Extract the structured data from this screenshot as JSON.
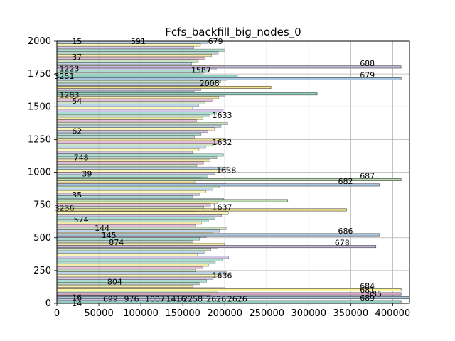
{
  "chart_data": {
    "type": "bar",
    "orientation": "horizontal",
    "title": "Fcfs_backfill_big_nodes_0",
    "xlabel": "",
    "ylabel": "",
    "xlim": [
      0,
      420000
    ],
    "ylim": [
      0,
      2000
    ],
    "xticks": [
      "0",
      "50000",
      "100000",
      "150000",
      "200000",
      "250000",
      "300000",
      "350000",
      "400000"
    ],
    "yticks": [
      "0",
      "250",
      "500",
      "750",
      "1000",
      "1250",
      "1500",
      "1750",
      "2000"
    ],
    "grid": true,
    "legend": "none",
    "colors": [
      "#8fd3c4",
      "#c3b6dc",
      "#fdf4a0",
      "#a8c6e0",
      "#b9dcb0",
      "#d9a8c8",
      "#f3e38a",
      "#9ec9b8"
    ],
    "bars": [
      {
        "label": "689",
        "y": 10,
        "start": 0,
        "end": 410000,
        "color": "#8fd3c4"
      },
      {
        "label": "685",
        "y": 40,
        "start": 0,
        "end": 440000,
        "color": "#a8c6e0"
      },
      {
        "label": "681",
        "y": 70,
        "start": 0,
        "end": 410000,
        "color": "#d9a8c8"
      },
      {
        "label": "684",
        "y": 100,
        "start": 0,
        "end": 410000,
        "color": "#fdf4a0"
      },
      {
        "label": "678",
        "y": 430,
        "start": 0,
        "end": 380000,
        "color": "#c3b6dc"
      },
      {
        "label": "686",
        "y": 520,
        "start": 0,
        "end": 384000,
        "color": "#a8c6e0"
      },
      {
        "label": "682",
        "y": 900,
        "start": 0,
        "end": 384000,
        "color": "#a8c6e0"
      },
      {
        "label": "687",
        "y": 940,
        "start": 0,
        "end": 410000,
        "color": "#b9dcb0"
      },
      {
        "label": "679",
        "y": 1710,
        "start": 0,
        "end": 410000,
        "color": "#a8c6e0"
      },
      {
        "label": "688",
        "y": 1800,
        "start": 0,
        "end": 410000,
        "color": "#c3b6dc"
      },
      {
        "label": "",
        "y": 1595,
        "start": 0,
        "end": 310000,
        "color": "#8fd3c4"
      },
      {
        "label": "",
        "y": 1645,
        "start": 0,
        "end": 255000,
        "color": "#f3e38a"
      },
      {
        "label": "",
        "y": 780,
        "start": 0,
        "end": 275000,
        "color": "#b9dcb0"
      },
      {
        "label": "",
        "y": 710,
        "start": 0,
        "end": 345000,
        "color": "#f3e38a"
      },
      {
        "label": "",
        "y": 1730,
        "start": 0,
        "end": 215000,
        "color": "#8fd3c4"
      }
    ],
    "annotations": [
      {
        "text": "15",
        "x": 18000,
        "y": 2000
      },
      {
        "text": "37",
        "x": 18000,
        "y": 1880
      },
      {
        "text": "1223",
        "x": 3000,
        "y": 1790
      },
      {
        "text": "3251",
        "x": -3000,
        "y": 1735
      },
      {
        "text": "1283",
        "x": 3000,
        "y": 1590
      },
      {
        "text": "54",
        "x": 18000,
        "y": 1545
      },
      {
        "text": "62",
        "x": 18000,
        "y": 1315
      },
      {
        "text": "748",
        "x": 20000,
        "y": 1115
      },
      {
        "text": "39",
        "x": 30000,
        "y": 990
      },
      {
        "text": "35",
        "x": 18000,
        "y": 830
      },
      {
        "text": "3236",
        "x": -3000,
        "y": 730
      },
      {
        "text": "574",
        "x": 20000,
        "y": 640
      },
      {
        "text": "144",
        "x": 45000,
        "y": 575
      },
      {
        "text": "145",
        "x": 53000,
        "y": 520
      },
      {
        "text": "874",
        "x": 62000,
        "y": 465
      },
      {
        "text": "804",
        "x": 60000,
        "y": 165
      },
      {
        "text": "16",
        "x": 18000,
        "y": 45
      },
      {
        "text": "14",
        "x": 18000,
        "y": 0
      },
      {
        "text": "699",
        "x": 55000,
        "y": 35
      },
      {
        "text": "976",
        "x": 80000,
        "y": 35
      },
      {
        "text": "1007",
        "x": 105000,
        "y": 35
      },
      {
        "text": "1416",
        "x": 130000,
        "y": 35
      },
      {
        "text": "2258",
        "x": 150000,
        "y": 35
      },
      {
        "text": "2626",
        "x": 178000,
        "y": 35
      },
      {
        "text": "2626",
        "x": 203000,
        "y": 35
      },
      {
        "text": "591",
        "x": 88000,
        "y": 2000
      },
      {
        "text": "679",
        "x": 180000,
        "y": 2000
      },
      {
        "text": "1587",
        "x": 160000,
        "y": 1780
      },
      {
        "text": "2008",
        "x": 170000,
        "y": 1680
      },
      {
        "text": "1633",
        "x": 185000,
        "y": 1435
      },
      {
        "text": "1632",
        "x": 185000,
        "y": 1230
      },
      {
        "text": "1638",
        "x": 190000,
        "y": 1015
      },
      {
        "text": "1637",
        "x": 185000,
        "y": 735
      },
      {
        "text": "1636",
        "x": 185000,
        "y": 215
      }
    ]
  }
}
